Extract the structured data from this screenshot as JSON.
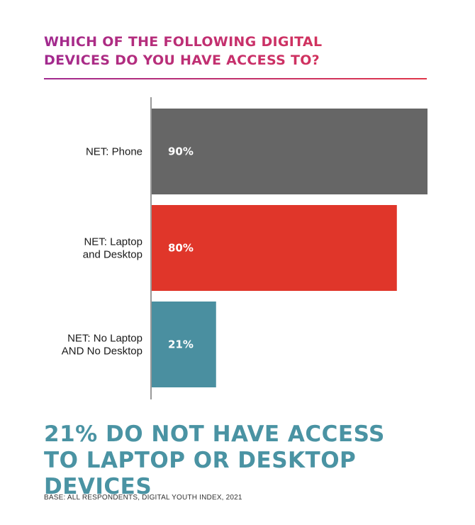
{
  "title_line1": "WHICH OF THE FOLLOWING DIGITAL",
  "title_line2": "DEVICES DO YOU HAVE ACCESS TO?",
  "headline_line1": "21% DO NOT HAVE ACCESS",
  "headline_line2": "TO LAPTOP OR DESKTOP DEVICES",
  "base_note": "BASE: ALL RESPONDENTS, DIGITAL YOUTH INDEX, 2021",
  "colors": {
    "accent_start": "#a12a8f",
    "accent_end": "#e0364a",
    "headline": "#4a93a3"
  },
  "chart_data": {
    "type": "bar",
    "orientation": "horizontal",
    "categories": [
      [
        "NET: Phone"
      ],
      [
        "NET: Laptop",
        "and Desktop"
      ],
      [
        "NET: No Laptop",
        "AND No Desktop"
      ]
    ],
    "values": [
      90,
      80,
      21
    ],
    "value_labels": [
      "90%",
      "80%",
      "21%"
    ],
    "bar_colors": [
      "#666666",
      "#e0362a",
      "#4a8fa0"
    ],
    "xlim": [
      0,
      90
    ],
    "grid": false
  }
}
